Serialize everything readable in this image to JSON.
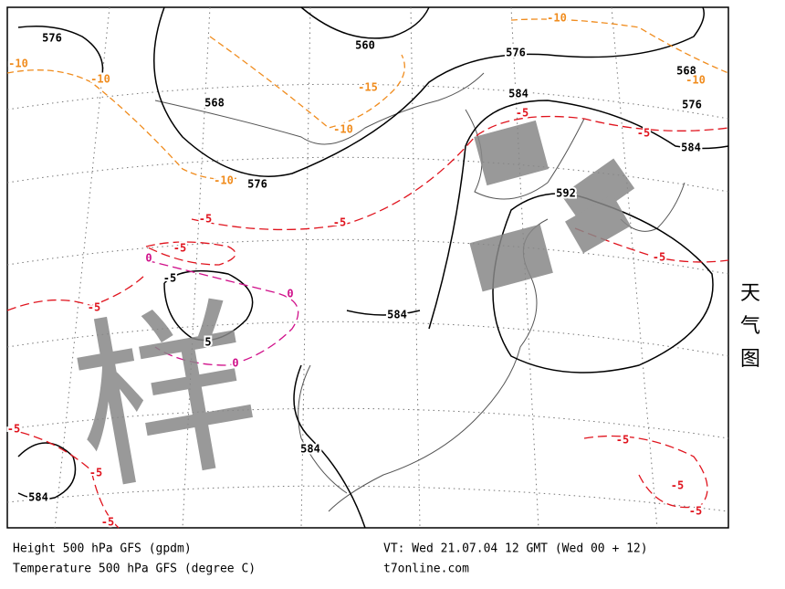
{
  "map": {
    "height_labels": [
      "576",
      "560",
      "576",
      "568",
      "576",
      "584",
      "568",
      "576",
      "584",
      "592",
      "584",
      "584",
      "584",
      "-5",
      "5"
    ],
    "orange_labels": [
      "-10",
      "-10",
      "-15",
      "-10",
      "-10",
      "-10",
      "-10"
    ],
    "red_labels": [
      "-5",
      "-5",
      "-5",
      "-5",
      "-5",
      "-5",
      "-5",
      "-5",
      "-5",
      "-5",
      "-5",
      "-5",
      "-5"
    ],
    "magenta_labels": [
      "0",
      "0",
      "0"
    ],
    "watermark": "样"
  },
  "footer": {
    "left": [
      "Height 500 hPa GFS (gpdm)",
      "Temperature 500 hPa GFS (degree C)"
    ],
    "right": [
      "VT: Wed 21.07.04 12 GMT (Wed 00 + 12)",
      "t7online.com"
    ]
  },
  "side_label": [
    "天",
    "气",
    "图"
  ]
}
